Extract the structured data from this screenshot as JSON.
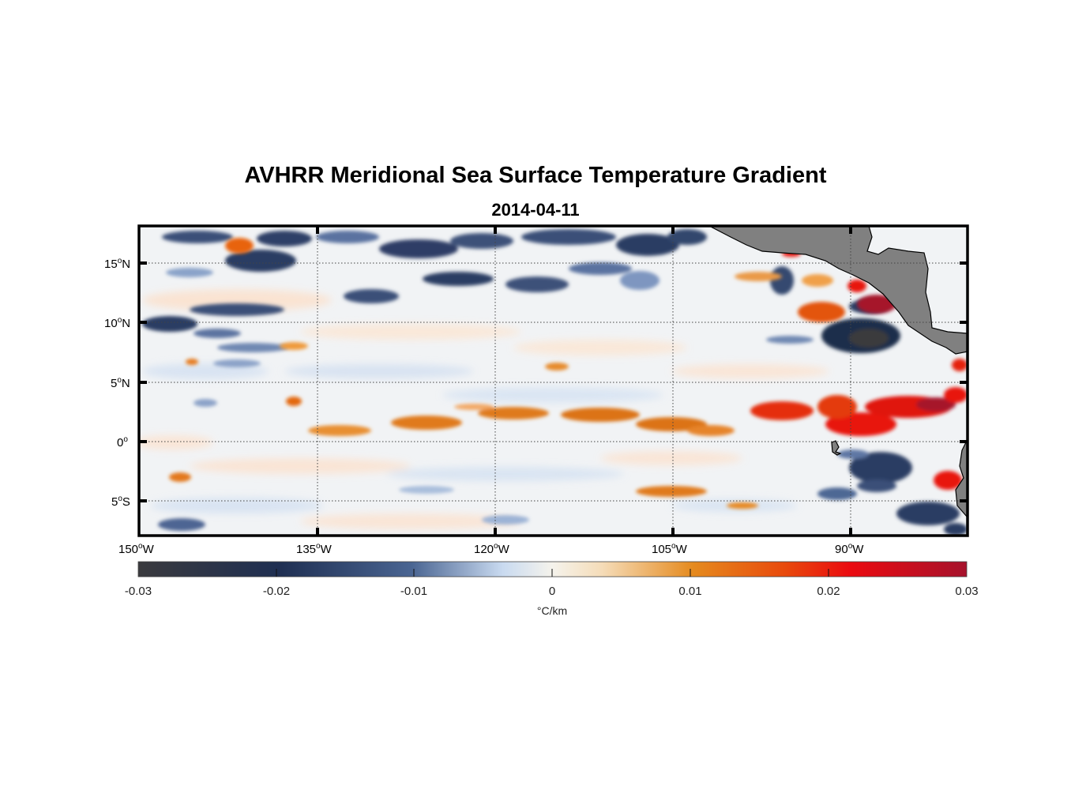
{
  "figure": {
    "title": "AVHRR Meridional Sea Surface Temperature Gradient",
    "subtitle": "2014-04-11"
  },
  "map": {
    "lon_range": [
      -150,
      -80
    ],
    "lat_range": [
      -8,
      18
    ],
    "grid": true,
    "land_color": "#808080",
    "x_ticks": [
      {
        "deg": "150",
        "hemi": "W"
      },
      {
        "deg": "135",
        "hemi": "W"
      },
      {
        "deg": "120",
        "hemi": "W"
      },
      {
        "deg": "105",
        "hemi": "W"
      },
      {
        "deg": "90",
        "hemi": "W"
      }
    ],
    "y_ticks": [
      {
        "deg": "15",
        "hemi": "N"
      },
      {
        "deg": "10",
        "hemi": "N"
      },
      {
        "deg": "5",
        "hemi": "N"
      },
      {
        "deg": "0",
        "hemi": ""
      },
      {
        "deg": "5",
        "hemi": "S"
      }
    ]
  },
  "colorbar": {
    "ticks": [
      "-0.03",
      "-0.02",
      "-0.01",
      "0",
      "0.01",
      "0.02",
      "0.03"
    ],
    "unit": "°C/km",
    "colors": [
      "#3a3a3e",
      "#1f2f52",
      "#4a6592",
      "#c9daf0",
      "#f5f3ec",
      "#f5dcb8",
      "#e58a1e",
      "#e84a0c",
      "#ea0a10",
      "#a6122c"
    ]
  }
}
